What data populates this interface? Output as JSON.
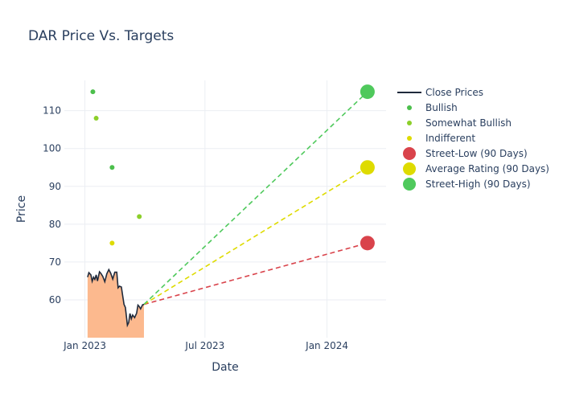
{
  "chart_data": {
    "type": "line",
    "title": "DAR Price Vs. Targets",
    "xlabel": "Date",
    "ylabel": "Price",
    "xlim": [
      "2022-12-01",
      "2024-03-30"
    ],
    "ylim": [
      50,
      118
    ],
    "x_ticks": [
      {
        "date": "2023-01-01",
        "label": "Jan 2023"
      },
      {
        "date": "2023-07-01",
        "label": "Jul 2023"
      },
      {
        "date": "2024-01-01",
        "label": "Jan 2024"
      }
    ],
    "y_ticks": [
      60,
      70,
      80,
      90,
      100,
      110
    ],
    "grid": true,
    "legend_position": "right",
    "colors": {
      "close": "#1f2a3c",
      "fill": "#fcb98e",
      "bullish": "#4cbf4c",
      "somewhat_bullish": "#8ccf2a",
      "indifferent": "#dedb00",
      "street_low": "#d9434b",
      "average": "#dedb00",
      "street_high": "#4fc95c",
      "grid": "#ebeef3"
    },
    "close_prices": {
      "name": "Close Prices",
      "points": [
        [
          "2023-01-05",
          66.0
        ],
        [
          "2023-01-07",
          67.2
        ],
        [
          "2023-01-10",
          66.6
        ],
        [
          "2023-01-12",
          64.9
        ],
        [
          "2023-01-14",
          66.0
        ],
        [
          "2023-01-16",
          65.4
        ],
        [
          "2023-01-18",
          66.6
        ],
        [
          "2023-01-20",
          65.0
        ],
        [
          "2023-01-23",
          67.4
        ],
        [
          "2023-01-25",
          67.0
        ],
        [
          "2023-01-28",
          66.2
        ],
        [
          "2023-01-31",
          64.8
        ],
        [
          "2023-02-03",
          66.9
        ],
        [
          "2023-02-06",
          68.0
        ],
        [
          "2023-02-09",
          67.0
        ],
        [
          "2023-02-12",
          65.5
        ],
        [
          "2023-02-15",
          67.3
        ],
        [
          "2023-02-18",
          67.3
        ],
        [
          "2023-02-20",
          63.2
        ],
        [
          "2023-02-22",
          63.6
        ],
        [
          "2023-02-25",
          63.4
        ],
        [
          "2023-02-27",
          61.0
        ],
        [
          "2023-03-01",
          58.8
        ],
        [
          "2023-03-03",
          58.0
        ],
        [
          "2023-03-05",
          55.0
        ],
        [
          "2023-03-06",
          53.3
        ],
        [
          "2023-03-08",
          54.0
        ],
        [
          "2023-03-10",
          56.4
        ],
        [
          "2023-03-12",
          55.0
        ],
        [
          "2023-03-14",
          56.0
        ],
        [
          "2023-03-17",
          55.3
        ],
        [
          "2023-03-20",
          56.5
        ],
        [
          "2023-03-22",
          58.6
        ],
        [
          "2023-03-24",
          58.2
        ],
        [
          "2023-03-26",
          57.6
        ],
        [
          "2023-03-29",
          58.7
        ],
        [
          "2023-03-31",
          58.8
        ]
      ]
    },
    "analyst_ratings": [
      {
        "name": "Bullish",
        "key": "bullish",
        "points": [
          [
            "2023-01-13",
            115
          ],
          [
            "2023-02-11",
            95
          ]
        ]
      },
      {
        "name": "Somewhat Bullish",
        "key": "somewhat_bullish",
        "points": [
          [
            "2023-01-18",
            108
          ],
          [
            "2023-03-24",
            82
          ]
        ]
      },
      {
        "name": "Indifferent",
        "key": "indifferent",
        "points": [
          [
            "2023-02-11",
            75
          ]
        ]
      }
    ],
    "targets": [
      {
        "name": "Street-Low (90 Days)",
        "key": "street_low",
        "start": [
          "2023-03-31",
          58.8
        ],
        "end": [
          "2024-03-02",
          75
        ]
      },
      {
        "name": "Average Rating (90 Days)",
        "key": "average",
        "start": [
          "2023-03-31",
          58.8
        ],
        "end": [
          "2024-03-02",
          95
        ]
      },
      {
        "name": "Street-High (90 Days)",
        "key": "street_high",
        "start": [
          "2023-03-31",
          58.8
        ],
        "end": [
          "2024-03-02",
          115
        ]
      }
    ],
    "legend": [
      "Close Prices",
      "Bullish",
      "Somewhat Bullish",
      "Indifferent",
      "Street-Low (90 Days)",
      "Average Rating (90 Days)",
      "Street-High (90 Days)"
    ]
  }
}
